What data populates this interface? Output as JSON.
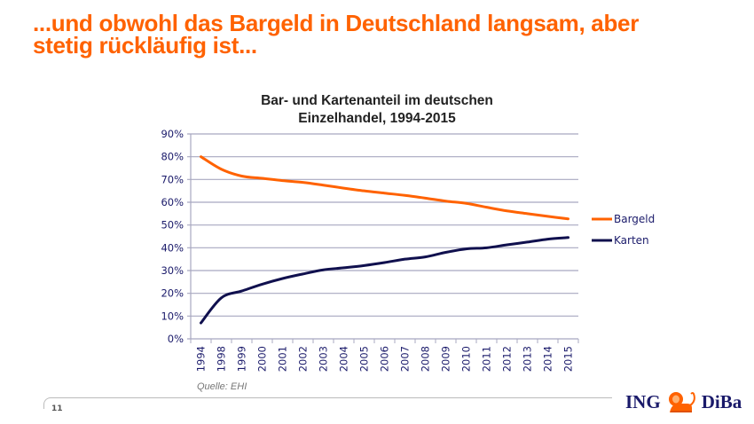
{
  "slide": {
    "title_line1": "...und obwohl das Bargeld in Deutschland langsam, aber",
    "title_line2": "stetig rückläufig ist...",
    "source": "Quelle: EHI",
    "page_number": "11",
    "logo_left": "ING",
    "logo_right": "DiBa",
    "brand_color": "#ff6200"
  },
  "chart_data": {
    "type": "line",
    "title": "Bar- und Kartenanteil im deutschen Einzelhandel, 1994-2015",
    "title_line1": "Bar- und Kartenanteil im deutschen",
    "title_line2": "Einzelhandel, 1994-2015",
    "xlabel": "",
    "ylabel": "",
    "categories": [
      "1994",
      "1998",
      "1999",
      "2000",
      "2001",
      "2002",
      "2003",
      "2004",
      "2005",
      "2006",
      "2007",
      "2008",
      "2009",
      "2010",
      "2011",
      "2012",
      "2013",
      "2014",
      "2015"
    ],
    "ylim": [
      0,
      90
    ],
    "yticks": [
      0,
      10,
      20,
      30,
      40,
      50,
      60,
      70,
      80,
      90
    ],
    "ytick_labels": [
      "0%",
      "10%",
      "20%",
      "30%",
      "40%",
      "50%",
      "60%",
      "70%",
      "80%",
      "90%"
    ],
    "grid": true,
    "legend_position": "right",
    "series": [
      {
        "name": "Bargeld",
        "color": "#ff6200",
        "values": [
          80,
          74.5,
          71.5,
          70.5,
          69.5,
          68.7,
          67.5,
          66.2,
          65,
          64,
          63,
          61.8,
          60.5,
          59.5,
          57.8,
          56.2,
          55,
          53.8,
          52.7
        ]
      },
      {
        "name": "Karten",
        "color": "#10104e",
        "values": [
          7,
          18,
          21,
          24,
          26.5,
          28.5,
          30.3,
          31.2,
          32.2,
          33.5,
          35,
          36,
          38,
          39.5,
          40,
          41.3,
          42.5,
          43.8,
          44.5
        ]
      }
    ]
  }
}
